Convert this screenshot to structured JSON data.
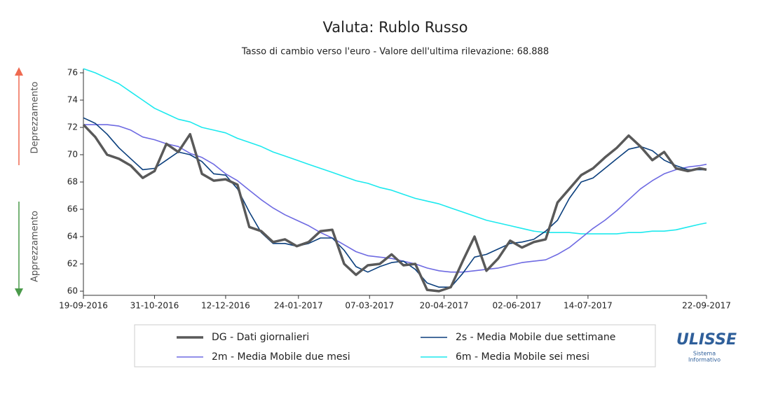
{
  "chart_data": {
    "type": "line",
    "title": "Valuta: Rublo Russo",
    "subtitle": "Tasso di cambio verso l'euro - Valore dell'ultima rilevazione: 68.888",
    "x": [
      "19-09-2016",
      "26-09-2016",
      "03-10-2016",
      "10-10-2016",
      "17-10-2016",
      "24-10-2016",
      "31-10-2016",
      "07-11-2016",
      "14-11-2016",
      "21-11-2016",
      "28-11-2016",
      "05-12-2016",
      "12-12-2016",
      "19-12-2016",
      "26-12-2016",
      "02-01-2017",
      "09-01-2017",
      "16-01-2017",
      "23-01-2017",
      "30-01-2017",
      "06-02-2017",
      "13-02-2017",
      "20-02-2017",
      "27-02-2017",
      "06-03-2017",
      "13-03-2017",
      "20-03-2017",
      "27-03-2017",
      "03-04-2017",
      "10-04-2017",
      "17-04-2017",
      "24-04-2017",
      "01-05-2017",
      "08-05-2017",
      "15-05-2017",
      "22-05-2017",
      "29-05-2017",
      "05-06-2017",
      "12-06-2017",
      "19-06-2017",
      "26-06-2017",
      "03-07-2017",
      "10-07-2017",
      "17-07-2017",
      "24-07-2017",
      "31-07-2017",
      "07-08-2017",
      "14-08-2017",
      "21-08-2017",
      "28-08-2017",
      "04-09-2017",
      "11-09-2017",
      "18-09-2017",
      "22-09-2017"
    ],
    "series": [
      {
        "name": "DG - Dati giornalieri",
        "color": "#595959",
        "line_width": 3.5,
        "values": [
          72.2,
          71.3,
          70.0,
          69.7,
          69.2,
          68.3,
          68.8,
          70.8,
          70.2,
          71.5,
          68.6,
          68.1,
          68.2,
          67.8,
          64.7,
          64.4,
          63.6,
          63.8,
          63.3,
          63.6,
          64.4,
          64.5,
          62.0,
          61.2,
          61.9,
          62.0,
          62.7,
          61.9,
          62.0,
          60.1,
          60.0,
          60.3,
          62.2,
          64.0,
          61.5,
          62.4,
          63.7,
          63.2,
          63.6,
          63.8,
          66.5,
          67.5,
          68.5,
          69.0,
          69.8,
          70.5,
          71.4,
          70.6,
          69.6,
          70.2,
          69.0,
          68.8,
          69.0,
          68.9
        ]
      },
      {
        "name": "2s - Media Mobile due settimane",
        "color": "#0b3f7d",
        "line_width": 1.6,
        "values": [
          72.7,
          72.3,
          71.5,
          70.5,
          69.7,
          68.9,
          69.0,
          69.6,
          70.2,
          70.0,
          69.5,
          68.6,
          68.5,
          67.5,
          65.8,
          64.3,
          63.5,
          63.5,
          63.3,
          63.5,
          63.9,
          63.9,
          63.0,
          61.8,
          61.4,
          61.8,
          62.1,
          62.2,
          61.6,
          60.6,
          60.3,
          60.3,
          61.3,
          62.5,
          62.7,
          63.1,
          63.5,
          63.6,
          63.8,
          64.4,
          65.2,
          66.8,
          68.0,
          68.3,
          69.0,
          69.7,
          70.4,
          70.6,
          70.3,
          69.6,
          69.2,
          68.9,
          68.9,
          68.9
        ]
      },
      {
        "name": "2m - Media Mobile due mesi",
        "color": "#6e6ae2",
        "line_width": 1.6,
        "values": [
          72.2,
          72.2,
          72.2,
          72.1,
          71.8,
          71.3,
          71.1,
          70.8,
          70.6,
          70.1,
          69.8,
          69.3,
          68.6,
          68.1,
          67.4,
          66.7,
          66.1,
          65.6,
          65.2,
          64.8,
          64.3,
          63.9,
          63.4,
          62.9,
          62.6,
          62.5,
          62.4,
          62.2,
          62.0,
          61.7,
          61.5,
          61.4,
          61.4,
          61.5,
          61.6,
          61.7,
          61.9,
          62.1,
          62.2,
          62.3,
          62.7,
          63.2,
          63.9,
          64.6,
          65.2,
          65.9,
          66.7,
          67.5,
          68.1,
          68.6,
          68.9,
          69.1,
          69.2,
          69.3
        ]
      },
      {
        "name": "6m - Media Mobile sei mesi",
        "color": "#1de9ee",
        "line_width": 1.6,
        "values": [
          76.3,
          76.0,
          75.6,
          75.2,
          74.6,
          74.0,
          73.4,
          73.0,
          72.6,
          72.4,
          72.0,
          71.8,
          71.6,
          71.2,
          70.9,
          70.6,
          70.2,
          69.9,
          69.6,
          69.3,
          69.0,
          68.7,
          68.4,
          68.1,
          67.9,
          67.6,
          67.4,
          67.1,
          66.8,
          66.6,
          66.4,
          66.1,
          65.8,
          65.5,
          65.2,
          65.0,
          64.8,
          64.6,
          64.4,
          64.3,
          64.3,
          64.3,
          64.2,
          64.2,
          64.2,
          64.2,
          64.3,
          64.3,
          64.4,
          64.4,
          64.5,
          64.7,
          64.9,
          65.0
        ]
      }
    ],
    "xlim": [
      "19-09-2016",
      "22-09-2017"
    ],
    "xticks": [
      "19-09-2016",
      "31-10-2016",
      "12-12-2016",
      "24-01-2017",
      "07-03-2017",
      "20-04-2017",
      "02-06-2017",
      "14-07-2017",
      "22-09-2017"
    ],
    "ylim": [
      59.7,
      76.3
    ],
    "yticks": [
      60,
      62,
      64,
      66,
      68,
      70,
      72,
      74,
      76
    ],
    "grid": false,
    "side_labels": {
      "up": "Deprezzamento",
      "down": "Apprezzamento"
    }
  },
  "logo": {
    "name": "ULISSE",
    "line1": "Sistema",
    "line2": "Informativo"
  }
}
